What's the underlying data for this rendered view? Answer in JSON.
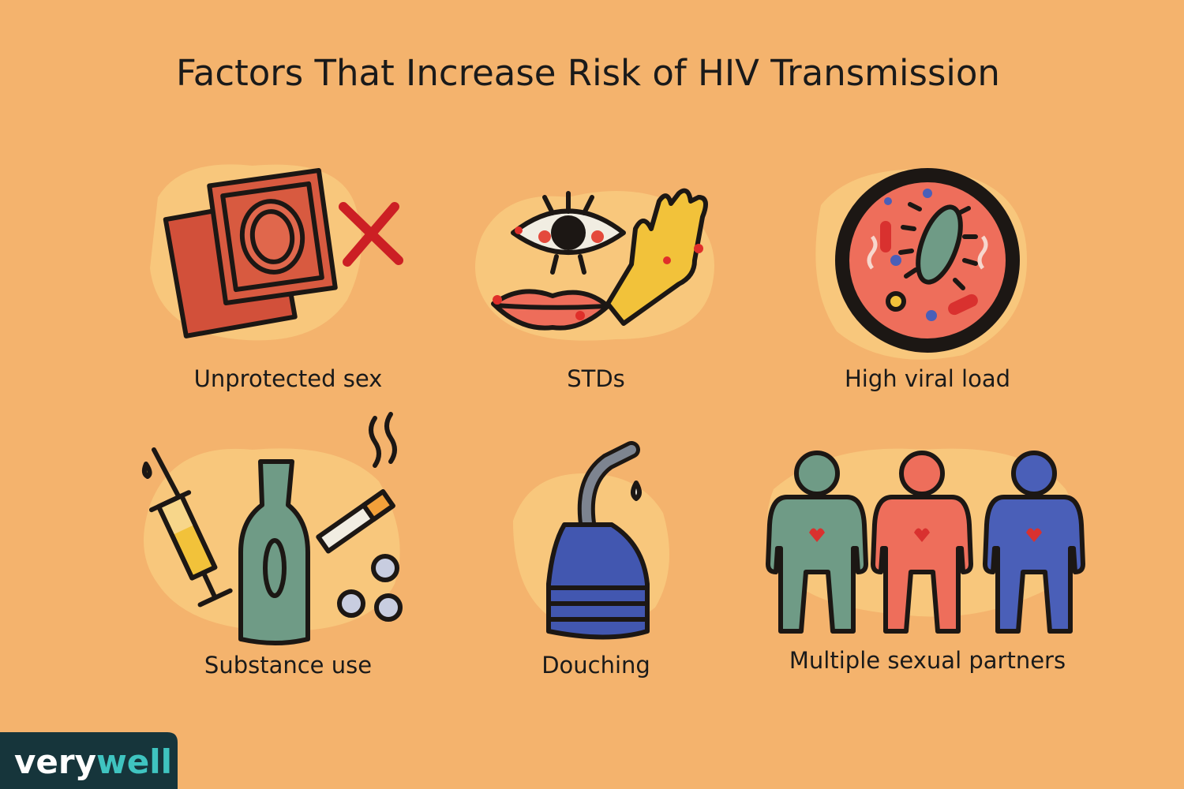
{
  "title": "Factors That Increase Risk of HIV Transmission",
  "items": [
    {
      "label": "Unprotected sex"
    },
    {
      "label": "STDs"
    },
    {
      "label": "High viral load"
    },
    {
      "label": "Substance use"
    },
    {
      "label": "Douching"
    },
    {
      "label": "Multiple sexual partners"
    }
  ],
  "brand": {
    "first": "very",
    "second": "well"
  }
}
